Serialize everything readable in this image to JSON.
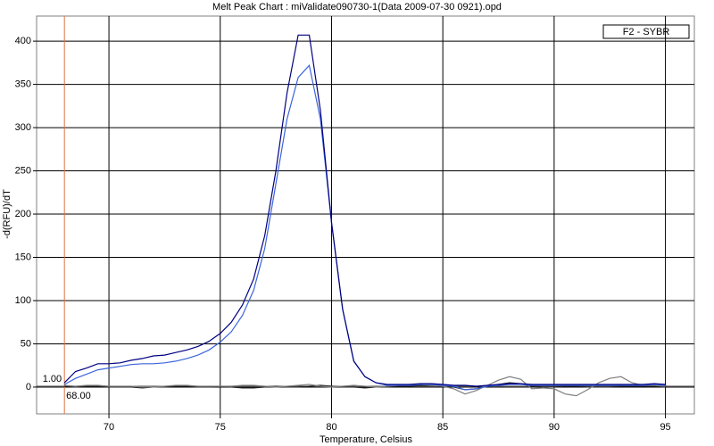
{
  "chart_data": {
    "type": "line",
    "title": "Melt Peak Chart : miValidate090730-1(Data 2009-07-30 0921).opd",
    "xlabel": "Temperature, Celsius",
    "ylabel": "-d(RFU)/dT",
    "legend_label": "F2 - SYBR",
    "x": [
      68,
      68.5,
      69,
      69.5,
      70,
      70.5,
      71,
      71.5,
      72,
      72.5,
      73,
      73.5,
      74,
      74.5,
      75,
      75.5,
      76,
      76.5,
      77,
      77.5,
      78,
      78.5,
      79,
      79.5,
      80,
      80.5,
      81,
      81.5,
      82,
      82.5,
      83,
      83.5,
      84,
      84.5,
      85,
      85.5,
      86,
      86.5,
      87,
      87.5,
      88,
      88.5,
      89,
      89.5,
      90,
      90.5,
      91,
      91.5,
      92,
      92.5,
      93,
      93.5,
      94,
      94.5,
      95
    ],
    "series": [
      {
        "color": "#000080",
        "values": [
          5,
          18,
          22,
          27,
          27,
          28,
          31,
          33,
          36,
          37,
          40,
          43,
          47,
          53,
          62,
          75,
          95,
          125,
          175,
          250,
          340,
          407,
          407,
          320,
          190,
          90,
          30,
          12,
          5,
          3,
          3,
          3,
          4,
          4,
          3,
          2,
          2,
          1,
          2,
          3,
          4,
          4,
          3,
          3,
          3,
          3,
          3,
          3,
          3,
          3,
          3,
          3,
          3,
          4,
          3
        ]
      },
      {
        "color": "#3c64dc",
        "values": [
          3,
          10,
          15,
          20,
          22,
          24,
          26,
          27,
          27,
          28,
          30,
          33,
          37,
          43,
          52,
          64,
          83,
          112,
          160,
          235,
          310,
          358,
          372,
          310,
          190,
          90,
          30,
          12,
          5,
          2,
          2,
          2,
          3,
          3,
          2,
          1,
          -3,
          -2,
          1,
          2,
          3,
          3,
          2,
          2,
          2,
          2,
          2,
          2,
          2,
          2,
          2,
          2,
          2,
          3,
          2
        ]
      },
      {
        "color": "#808080",
        "values": [
          2,
          1,
          2,
          2,
          1,
          1,
          1,
          0,
          0,
          1,
          2,
          2,
          1,
          1,
          1,
          1,
          2,
          2,
          1,
          0,
          1,
          2,
          3,
          1,
          0,
          1,
          2,
          1,
          0,
          1,
          2,
          3,
          3,
          2,
          1,
          -2,
          -8,
          -4,
          2,
          8,
          12,
          9,
          -2,
          -1,
          -2,
          -8,
          -10,
          -3,
          5,
          10,
          12,
          5,
          2,
          2,
          1
        ]
      },
      {
        "color": "#202020",
        "values": [
          1,
          0,
          1,
          1,
          0,
          0,
          0,
          -1,
          0,
          0,
          1,
          1,
          0,
          0,
          1,
          0,
          -1,
          -1,
          0,
          1,
          0,
          0,
          1,
          2,
          1,
          0,
          0,
          -1,
          0,
          0,
          1,
          1,
          2,
          2,
          1,
          0,
          -3,
          -2,
          1,
          3,
          5,
          4,
          1,
          0,
          0,
          1,
          1,
          0,
          0,
          0,
          1,
          1,
          1,
          1,
          0
        ]
      }
    ],
    "cursor": {
      "x": {
        "value": 68,
        "label": "68.00"
      },
      "y": {
        "value": 1,
        "label": "1.00"
      },
      "color": "#e07040"
    },
    "xlim": [
      66.75,
      96.3
    ],
    "ylim": [
      -31,
      429
    ],
    "xticks": [
      70,
      75,
      80,
      85,
      90,
      95
    ],
    "yticks": [
      0,
      50,
      100,
      150,
      200,
      250,
      300,
      350,
      400
    ],
    "grid": true
  }
}
